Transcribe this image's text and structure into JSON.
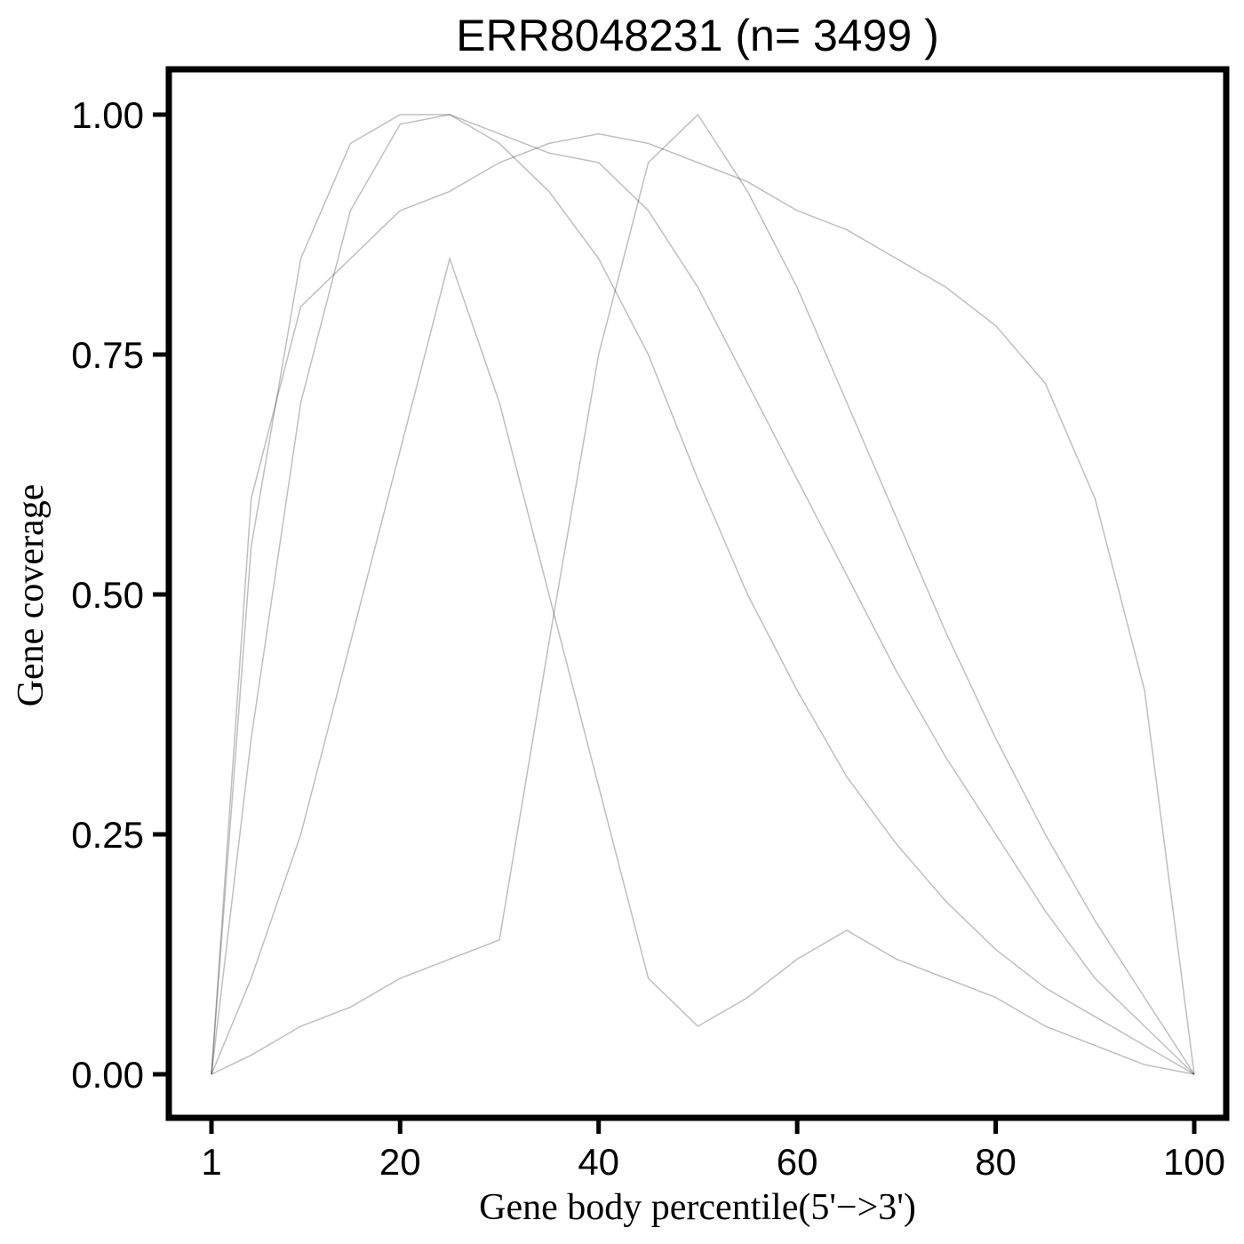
{
  "chart_data": {
    "type": "line",
    "title": "ERR8048231 (n= 3499 )",
    "xlabel": "Gene body percentile(5'−>3')",
    "ylabel": "Gene coverage",
    "xlim": [
      1,
      100
    ],
    "ylim": [
      0,
      1
    ],
    "x_ticks": [
      1,
      20,
      40,
      60,
      80,
      100
    ],
    "y_ticks": [
      0.0,
      0.25,
      0.5,
      0.75,
      1.0
    ],
    "x_tick_labels": [
      "1",
      "20",
      "40",
      "60",
      "80",
      "100"
    ],
    "y_tick_labels": [
      "0.00",
      "0.25",
      "0.50",
      "0.75",
      "1.00"
    ],
    "line_color": "#000000",
    "line_opacity": 0.25,
    "grid": false,
    "legend": "none",
    "representative_series": [
      {
        "x": [
          1,
          5,
          10,
          15,
          20,
          25,
          30,
          35,
          40,
          45,
          50,
          55,
          60,
          65,
          70,
          75,
          80,
          85,
          90,
          95,
          100
        ],
        "values": [
          0.0,
          0.55,
          0.85,
          0.97,
          1.0,
          1.0,
          0.98,
          0.96,
          0.95,
          0.9,
          0.82,
          0.72,
          0.62,
          0.52,
          0.42,
          0.33,
          0.25,
          0.17,
          0.1,
          0.05,
          0.0
        ]
      },
      {
        "x": [
          1,
          5,
          10,
          15,
          20,
          25,
          30,
          35,
          40,
          45,
          50,
          55,
          60,
          65,
          70,
          75,
          80,
          85,
          90,
          95,
          100
        ],
        "values": [
          0.0,
          0.35,
          0.7,
          0.9,
          0.99,
          1.0,
          0.97,
          0.92,
          0.85,
          0.75,
          0.62,
          0.5,
          0.4,
          0.31,
          0.24,
          0.18,
          0.13,
          0.09,
          0.06,
          0.03,
          0.0
        ]
      },
      {
        "x": [
          1,
          5,
          10,
          15,
          20,
          25,
          30,
          35,
          40,
          45,
          50,
          55,
          60,
          65,
          70,
          75,
          80,
          85,
          90,
          95,
          100
        ],
        "values": [
          0.0,
          0.02,
          0.05,
          0.07,
          0.1,
          0.12,
          0.14,
          0.45,
          0.75,
          0.95,
          1.0,
          0.92,
          0.82,
          0.7,
          0.58,
          0.46,
          0.35,
          0.25,
          0.16,
          0.08,
          0.0
        ]
      },
      {
        "x": [
          1,
          5,
          10,
          15,
          20,
          25,
          30,
          35,
          40,
          45,
          50,
          55,
          60,
          65,
          70,
          75,
          80,
          85,
          90,
          95,
          100
        ],
        "values": [
          0.0,
          0.1,
          0.25,
          0.45,
          0.65,
          0.85,
          0.7,
          0.5,
          0.3,
          0.1,
          0.05,
          0.08,
          0.12,
          0.15,
          0.12,
          0.1,
          0.08,
          0.05,
          0.03,
          0.01,
          0.0
        ]
      },
      {
        "x": [
          1,
          5,
          10,
          15,
          20,
          25,
          30,
          35,
          40,
          45,
          50,
          55,
          60,
          65,
          70,
          75,
          80,
          85,
          90,
          95,
          100
        ],
        "values": [
          0.0,
          0.6,
          0.8,
          0.85,
          0.9,
          0.92,
          0.95,
          0.97,
          0.98,
          0.97,
          0.95,
          0.93,
          0.9,
          0.88,
          0.85,
          0.82,
          0.78,
          0.72,
          0.6,
          0.4,
          0.0
        ]
      }
    ]
  }
}
